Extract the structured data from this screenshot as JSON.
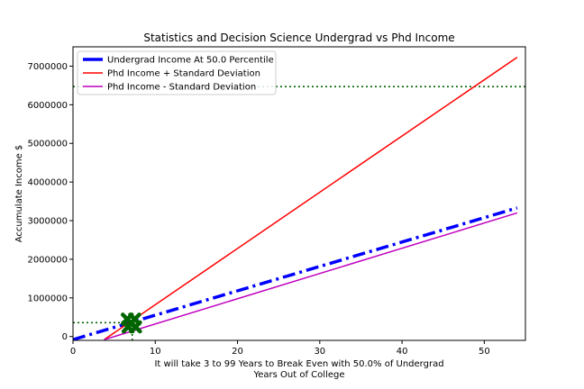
{
  "chart_data": {
    "type": "line",
    "title": "Statistics and Decision Science Undergrad vs Phd Income",
    "xlabel_lines": [
      "It will take 3 to 99 Years to Break Even with 50.0% of Undergrad",
      "Years Out of College"
    ],
    "ylabel": "Accumulate Income $",
    "xlim": [
      0,
      55
    ],
    "ylim": [
      -100000,
      7500000
    ],
    "x_ticks": [
      0,
      10,
      20,
      30,
      40,
      50
    ],
    "y_ticks": [
      0,
      1000000,
      2000000,
      3000000,
      4000000,
      5000000,
      6000000,
      7000000
    ],
    "y_tick_labels": [
      "0",
      "1000000",
      "2000000",
      "3000000",
      "4000000",
      "5000000",
      "6000000",
      "7000000"
    ],
    "legend_position": "upper-left",
    "series": [
      {
        "name": "Undergrad Income At 50.0 Percentile",
        "color": "#0000ff",
        "style": "dashdot",
        "width": 3.5,
        "x": [
          0,
          54
        ],
        "y": [
          -80000,
          3330000
        ]
      },
      {
        "name": "Phd Income + Standard Deviation",
        "color": "#ff0000",
        "style": "solid",
        "width": 1.5,
        "x": [
          3.8,
          54
        ],
        "y": [
          -80000,
          7230000
        ]
      },
      {
        "name": "Phd Income - Standard Deviation",
        "color": "#bf00bf",
        "style": "solid",
        "width": 1.5,
        "x": [
          3.8,
          54
        ],
        "y": [
          -80000,
          3200000
        ]
      }
    ],
    "reference_lines": [
      {
        "orientation": "horizontal",
        "y": 6470000,
        "x_range": [
          0,
          55
        ],
        "color": "#006400",
        "style": "dotted"
      },
      {
        "orientation": "horizontal",
        "y": 360000,
        "x_range": [
          0,
          7.2
        ],
        "color": "#006400",
        "style": "dotted"
      },
      {
        "orientation": "vertical",
        "x": 7.2,
        "y_range": [
          -100000,
          360000
        ],
        "color": "#006400",
        "style": "dotted"
      }
    ],
    "markers": [
      {
        "x": 6.6,
        "y": 450000,
        "color": "#006400",
        "shape": "x"
      },
      {
        "x": 7.5,
        "y": 450000,
        "color": "#006400",
        "shape": "x"
      },
      {
        "x": 6.7,
        "y": 250000,
        "color": "#006400",
        "shape": "x"
      },
      {
        "x": 7.6,
        "y": 250000,
        "color": "#006400",
        "shape": "x"
      }
    ]
  }
}
